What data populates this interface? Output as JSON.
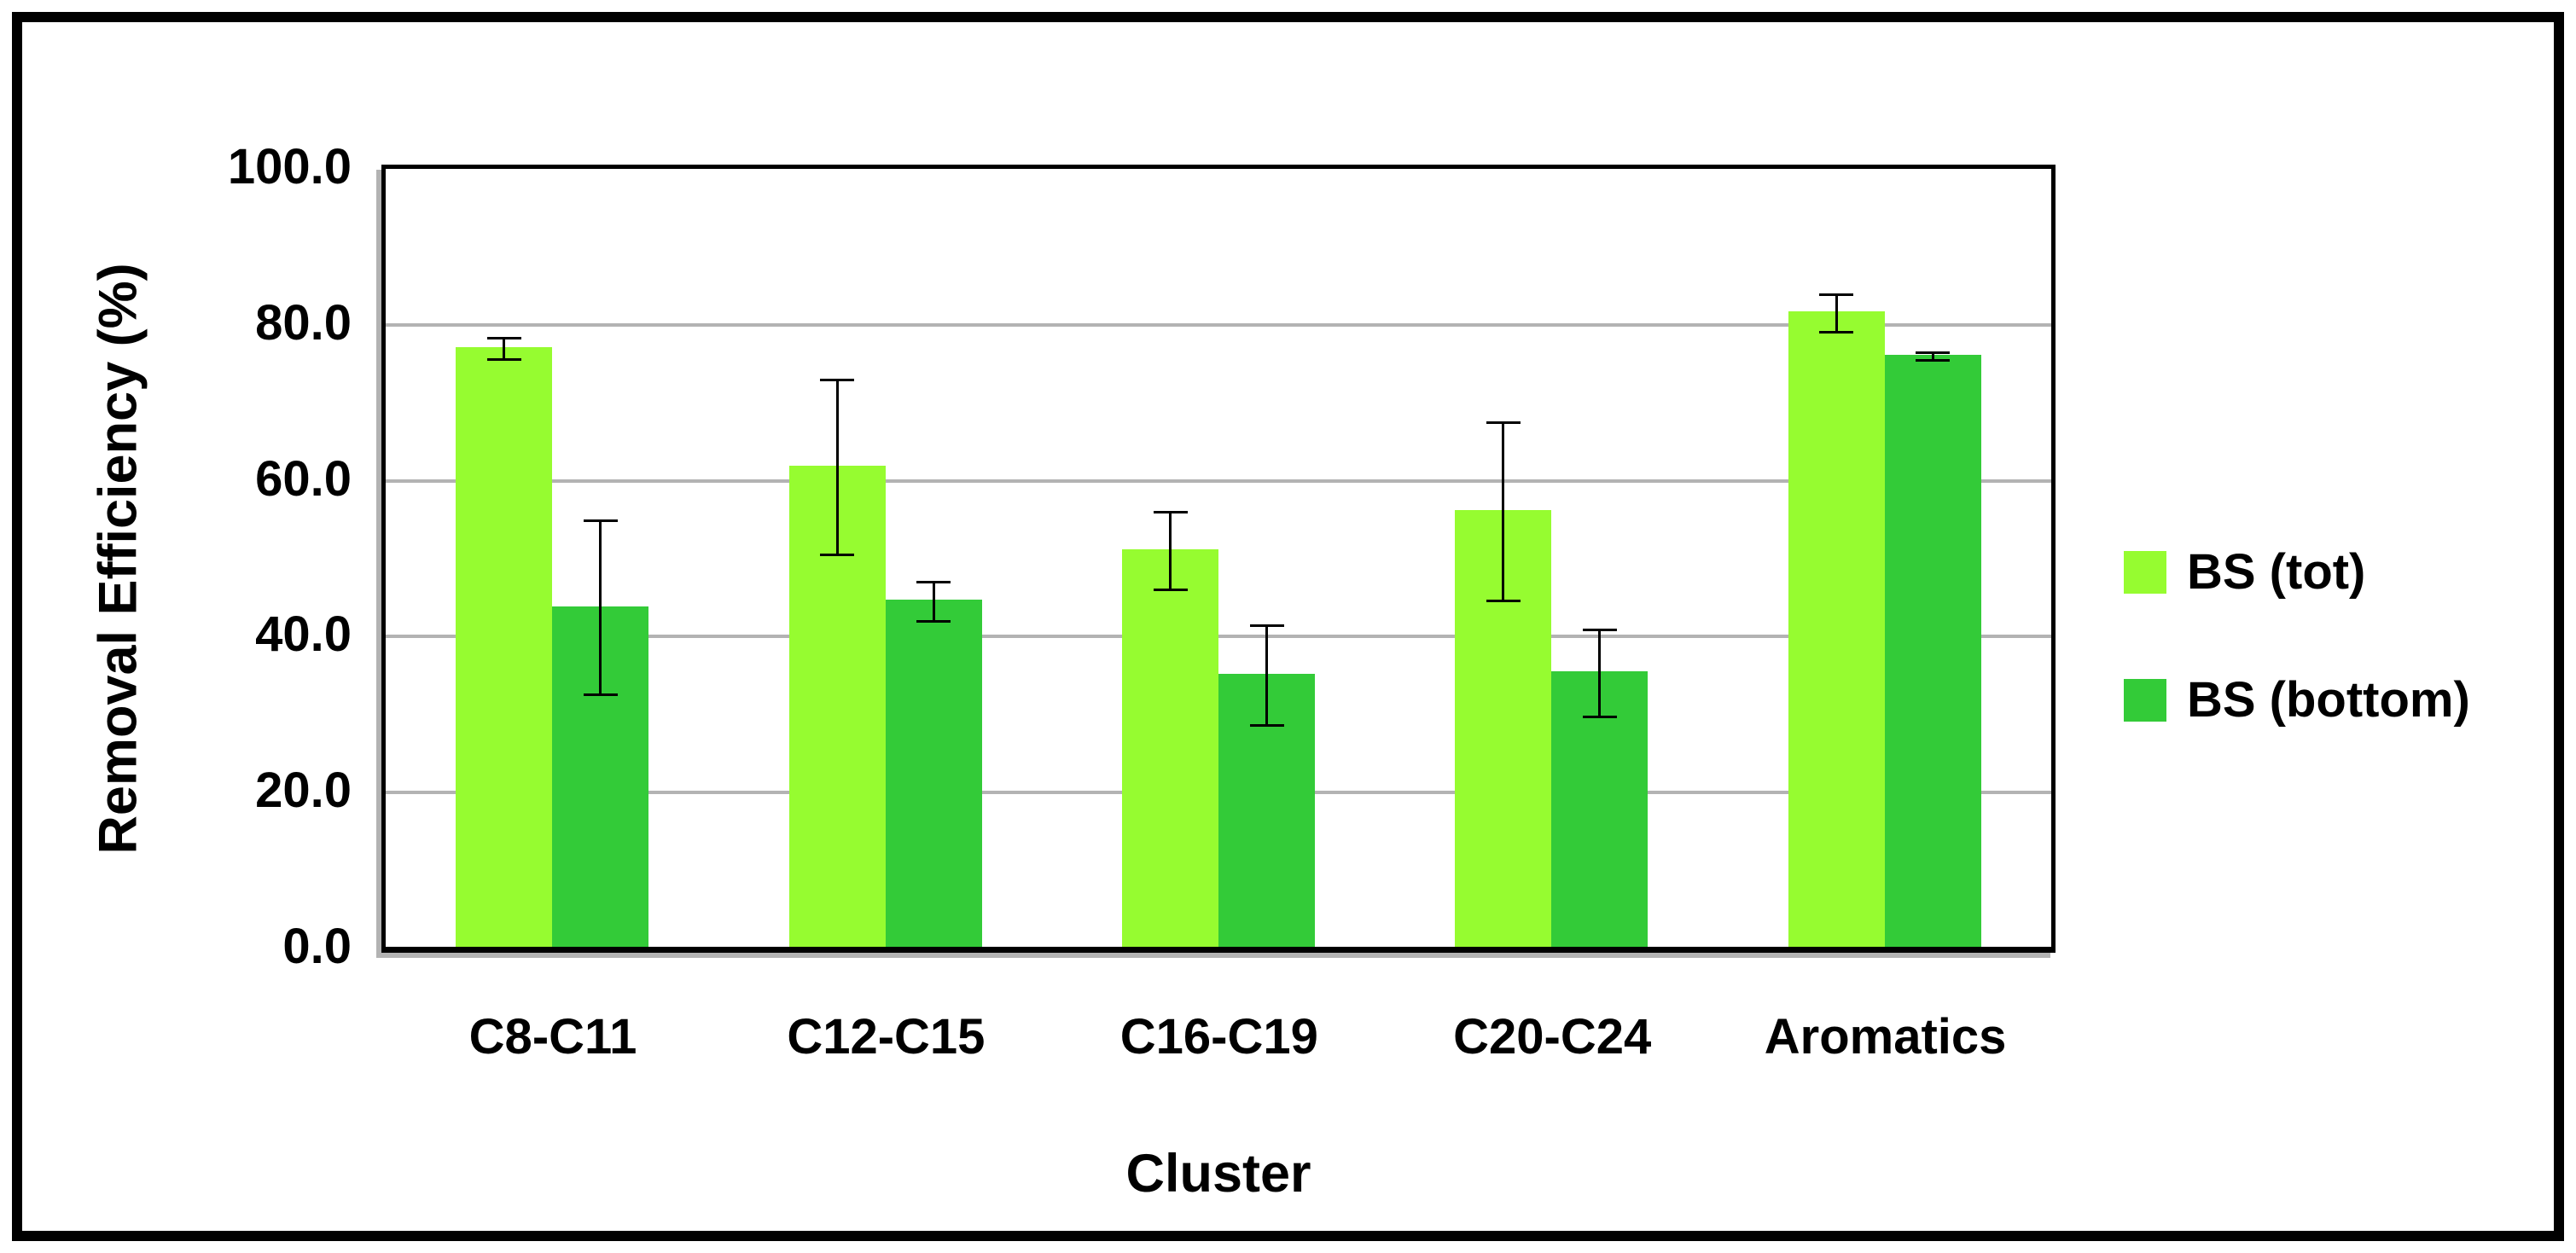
{
  "chart_data": {
    "type": "bar",
    "title": "",
    "xlabel": "Cluster",
    "ylabel": "Removal Efficiency (%)",
    "ylim": [
      0,
      100
    ],
    "ytick_step": 20,
    "ytick_labels": [
      "0.0",
      "20.0",
      "40.0",
      "60.0",
      "80.0",
      "100.0"
    ],
    "grid": "horizontal",
    "legend_position": "right",
    "categories": [
      "C8-C11",
      "C12-C15",
      "C16-C19",
      "C20-C24",
      "Aromatics"
    ],
    "series": [
      {
        "name": "BS (tot)",
        "color": "#96FC30",
        "values": [
          76.9,
          61.7,
          51.0,
          56.0,
          81.5
        ],
        "errors": [
          1.4,
          11.2,
          5.0,
          11.4,
          2.4
        ]
      },
      {
        "name": "BS (bottom)",
        "color": "#33CB38",
        "values": [
          43.7,
          44.5,
          35.0,
          35.3,
          75.9
        ],
        "errors": [
          11.2,
          2.5,
          6.4,
          5.6,
          0.5
        ]
      }
    ]
  },
  "colors": {
    "gridline": "#b3b3b3",
    "axis": "#000000",
    "error_bar": "#000000",
    "background": "#ffffff"
  }
}
